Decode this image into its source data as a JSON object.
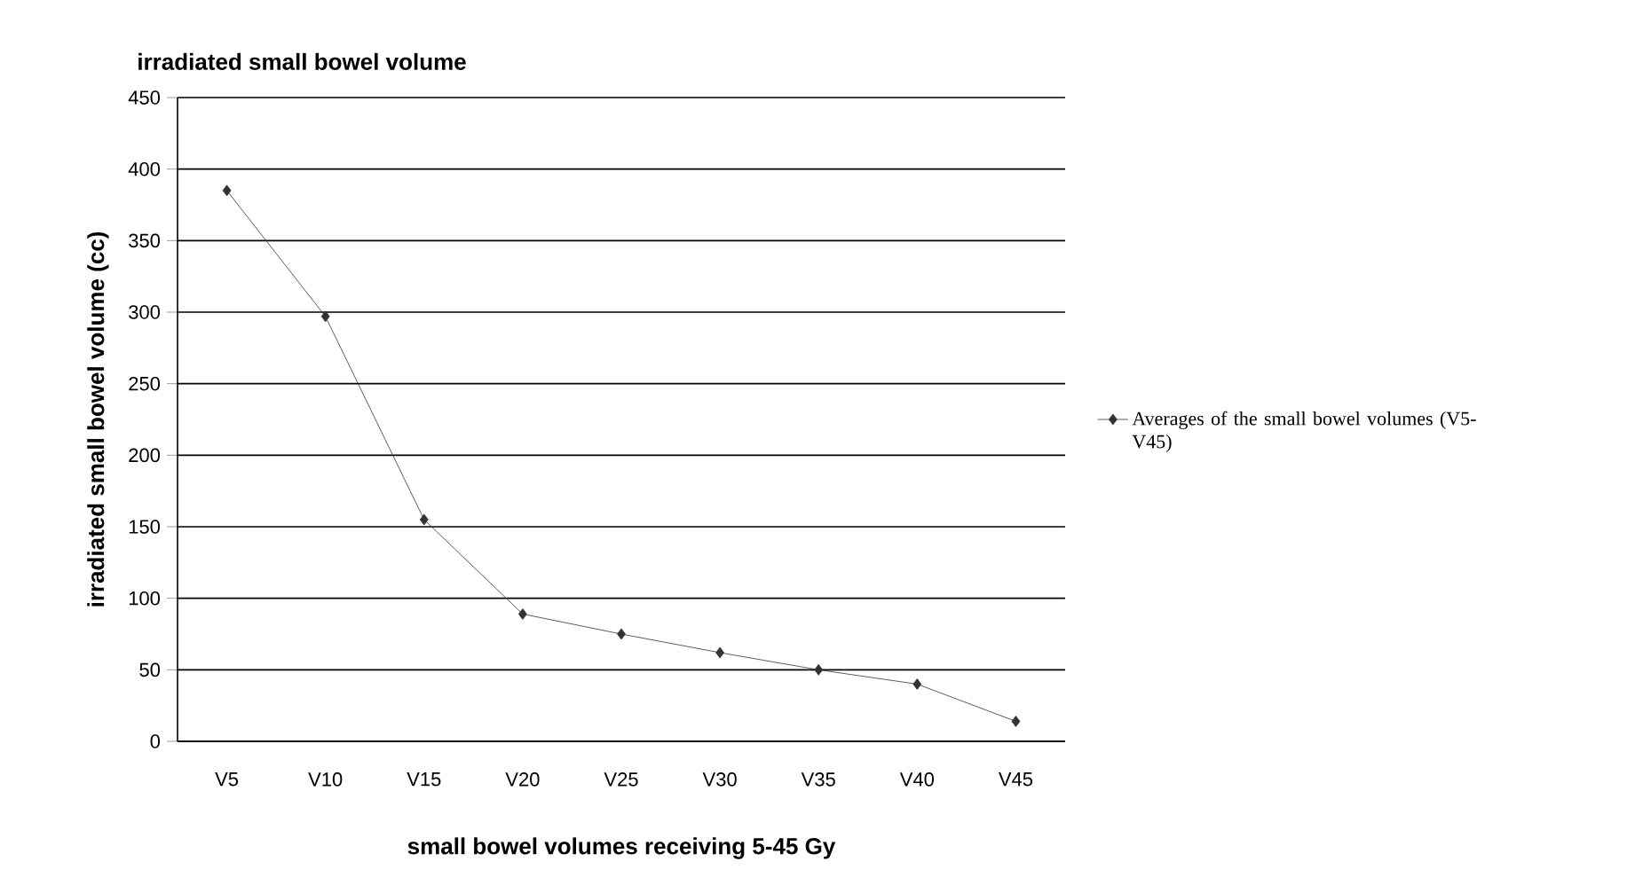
{
  "chart_data": {
    "type": "line",
    "title": "irradiated small bowel volume",
    "xlabel": "small bowel volumes receiving 5-45 Gy",
    "ylabel": "irradiated small bowel volume (cc)",
    "categories": [
      "V5",
      "V10",
      "V15",
      "V20",
      "V25",
      "V30",
      "V35",
      "V40",
      "V45"
    ],
    "series": [
      {
        "name": "Averages of the small bowel volumes (V5-V45)",
        "color": "#333333",
        "values": [
          385,
          297,
          155,
          89,
          75,
          62,
          50,
          40,
          14
        ]
      }
    ],
    "ylim": [
      0,
      450
    ],
    "yticks": [
      0,
      50,
      100,
      150,
      200,
      250,
      300,
      350,
      400,
      450
    ],
    "grid": "y",
    "legend": "right",
    "marker": "diamond",
    "line_style": "solid"
  }
}
